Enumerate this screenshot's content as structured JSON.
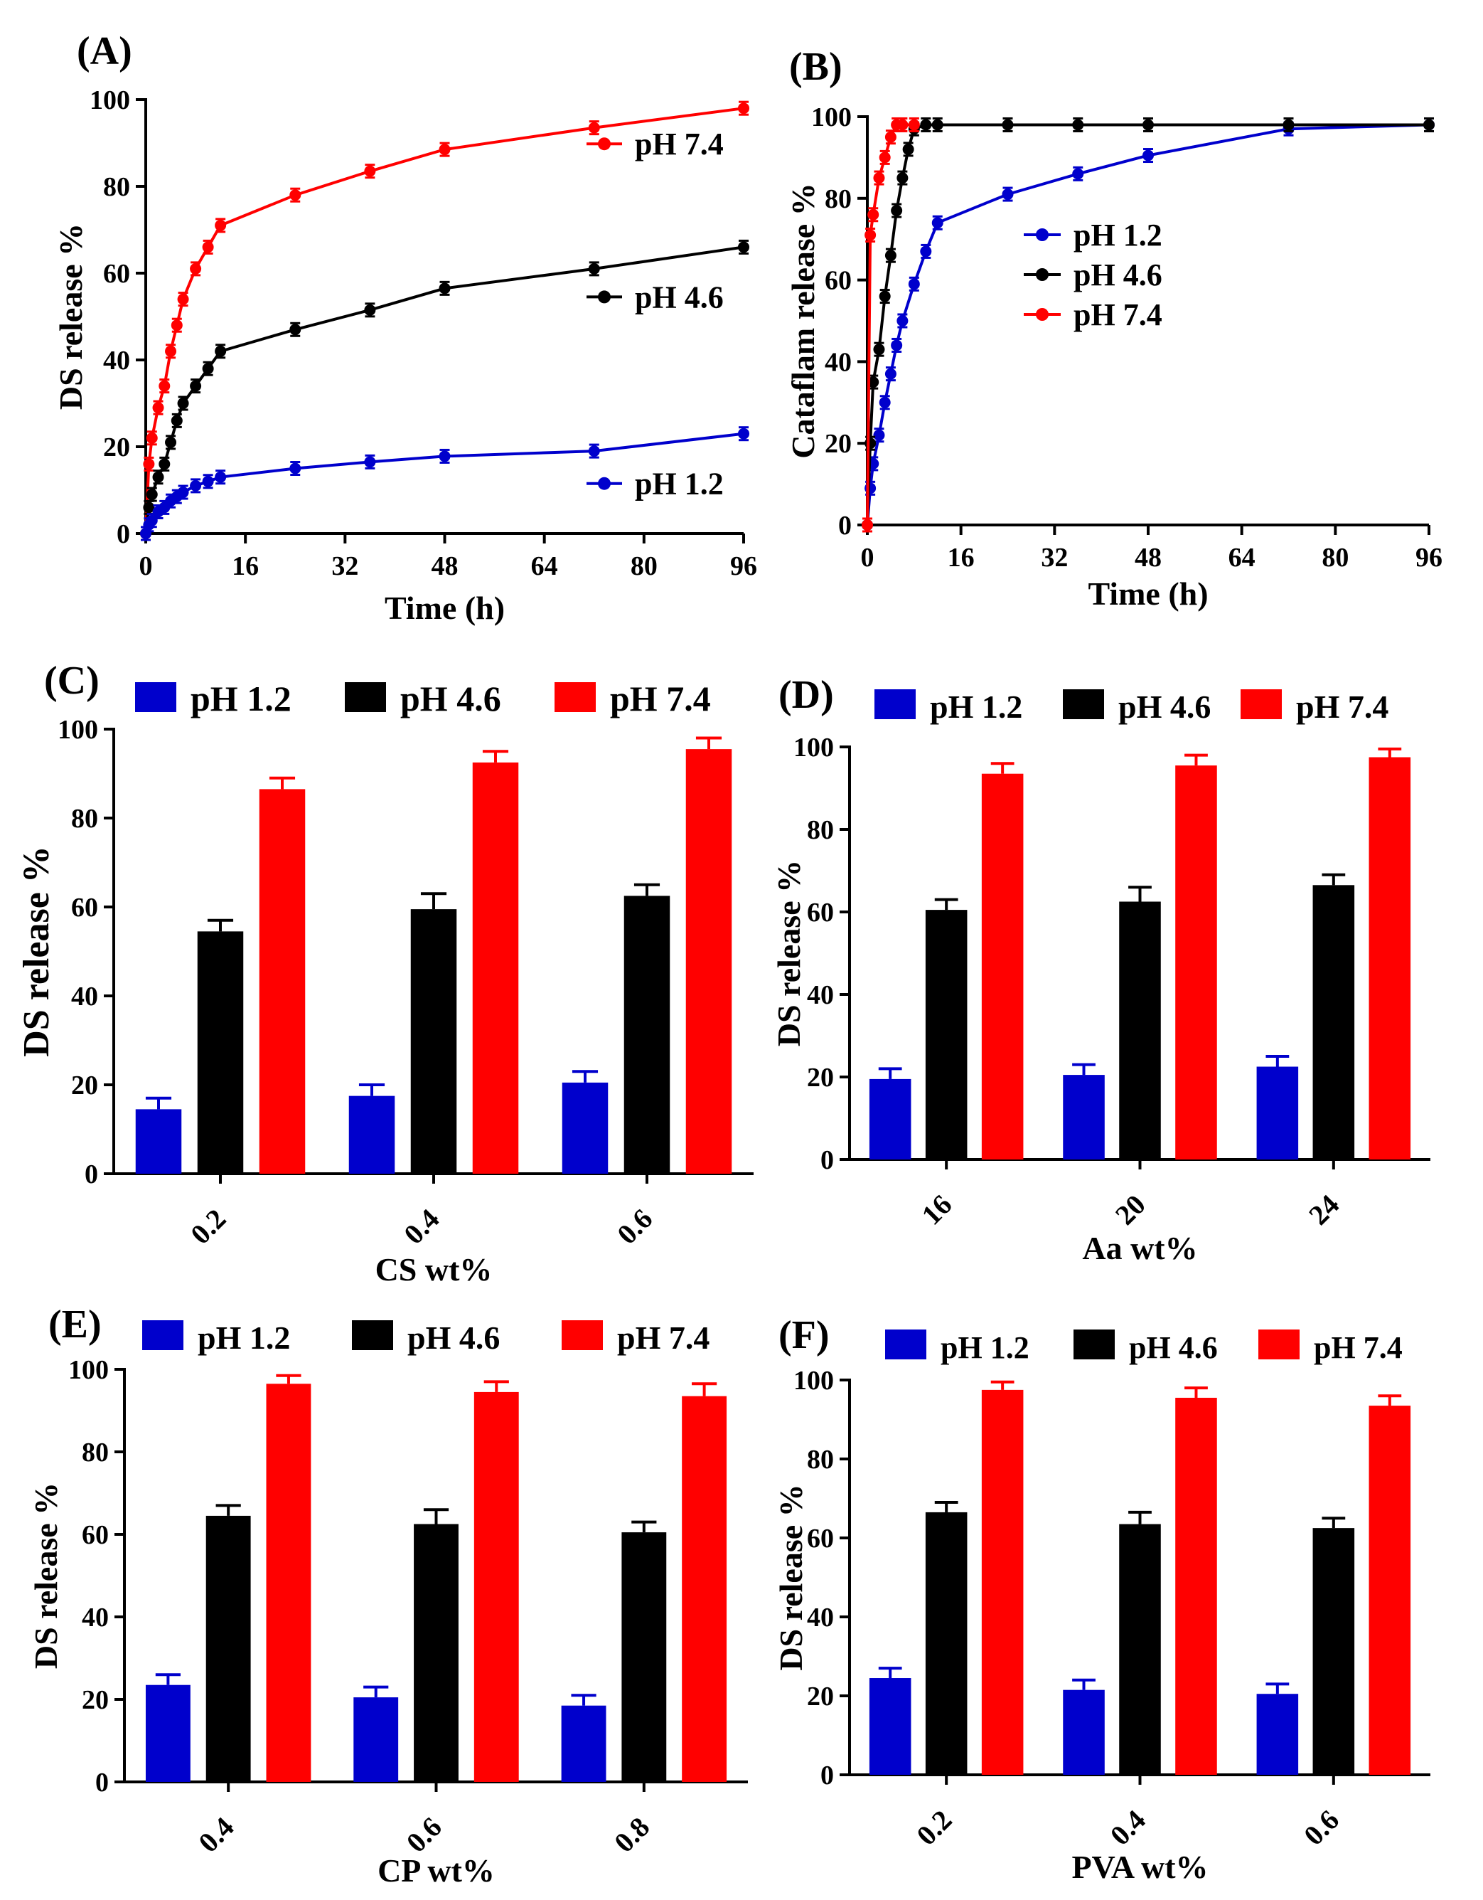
{
  "colors": {
    "ph12": "#0000cc",
    "ph46": "#000000",
    "ph74": "#ff0000"
  },
  "chart_data": [
    {
      "id": "A",
      "type": "line",
      "panel_label": "(A)",
      "xlabel": "Time (h)",
      "ylabel": "DS release %",
      "xlim": [
        0,
        96
      ],
      "ylim": [
        0,
        100
      ],
      "xticks": [
        "0",
        "16",
        "32",
        "48",
        "64",
        "80",
        "96"
      ],
      "yticks": [
        "0",
        "20",
        "40",
        "60",
        "80",
        "100"
      ],
      "legend_placement": "inline-right",
      "series": [
        {
          "name": "pH 7.4",
          "color": "#ff0000",
          "x": [
            0,
            0.5,
            1,
            2,
            3,
            4,
            5,
            6,
            8,
            10,
            12,
            24,
            36,
            48,
            72,
            96
          ],
          "y": [
            0,
            16,
            22,
            29,
            34,
            42,
            48,
            54,
            61,
            66,
            71,
            78,
            83.5,
            88.5,
            93.5,
            98
          ]
        },
        {
          "name": "pH 4.6",
          "color": "#000000",
          "x": [
            0,
            0.5,
            1,
            2,
            3,
            4,
            5,
            6,
            8,
            10,
            12,
            24,
            36,
            48,
            72,
            96
          ],
          "y": [
            0,
            6,
            9,
            13,
            16,
            21,
            26,
            30,
            34,
            38,
            42,
            47,
            51.5,
            56.5,
            61,
            66
          ]
        },
        {
          "name": "pH 1.2",
          "color": "#0000cc",
          "x": [
            0,
            0.5,
            1,
            2,
            3,
            4,
            5,
            6,
            8,
            10,
            12,
            24,
            36,
            48,
            72,
            96
          ],
          "y": [
            0,
            2,
            3,
            5,
            6,
            7.5,
            8.5,
            9.5,
            11,
            12,
            13,
            15,
            16.5,
            17.8,
            19,
            23
          ]
        }
      ]
    },
    {
      "id": "B",
      "type": "line",
      "panel_label": "(B)",
      "xlabel": "Time (h)",
      "ylabel": "Cataflam release %",
      "xlim": [
        0,
        96
      ],
      "ylim": [
        0,
        100
      ],
      "xticks": [
        "0",
        "16",
        "32",
        "48",
        "64",
        "80",
        "96"
      ],
      "yticks": [
        "0",
        "20",
        "40",
        "60",
        "80",
        "100"
      ],
      "legend_placement": "center-left",
      "series": [
        {
          "name": "pH 1.2",
          "color": "#0000cc",
          "x": [
            0,
            0.5,
            1,
            2,
            3,
            4,
            5,
            6,
            8,
            10,
            12,
            24,
            36,
            48,
            72,
            96
          ],
          "y": [
            0,
            9,
            15,
            22,
            30,
            37,
            44,
            50,
            59,
            67,
            74,
            81,
            86,
            90.5,
            97,
            98
          ]
        },
        {
          "name": "pH 4.6",
          "color": "#000000",
          "x": [
            0,
            0.5,
            1,
            2,
            3,
            4,
            5,
            6,
            7,
            8,
            10,
            12,
            24,
            36,
            48,
            72,
            96
          ],
          "y": [
            0,
            20,
            35,
            43,
            56,
            66,
            77,
            85,
            92,
            97,
            98,
            98,
            98,
            98,
            98,
            98,
            98
          ]
        },
        {
          "name": "pH 7.4",
          "color": "#ff0000",
          "x": [
            0,
            0.5,
            1,
            2,
            3,
            4,
            5,
            6,
            8
          ],
          "y": [
            0,
            71,
            76,
            85,
            90,
            95,
            98,
            98,
            98
          ]
        }
      ]
    },
    {
      "id": "C",
      "type": "bar",
      "panel_label": "(C)",
      "xlabel": "CS wt%",
      "ylabel": "DS release %",
      "ylim": [
        0,
        100
      ],
      "yticks": [
        "0",
        "20",
        "40",
        "60",
        "80",
        "100"
      ],
      "categories": [
        "0.2",
        "0.4",
        "0.6"
      ],
      "legend_placement": "top",
      "series": [
        {
          "name": "pH 1.2",
          "color": "#0000cc",
          "values": [
            14.5,
            17.5,
            20.5
          ],
          "errors": [
            2.5,
            2.5,
            2.5
          ]
        },
        {
          "name": "pH 4.6",
          "color": "#000000",
          "values": [
            54.5,
            59.5,
            62.5
          ],
          "errors": [
            2.5,
            3.5,
            2.5
          ]
        },
        {
          "name": "pH 7.4",
          "color": "#ff0000",
          "values": [
            86.5,
            92.5,
            95.5
          ],
          "errors": [
            2.5,
            2.5,
            2.5
          ]
        }
      ]
    },
    {
      "id": "D",
      "type": "bar",
      "panel_label": "(D)",
      "xlabel": "Aa wt%",
      "ylabel": "DS release %",
      "ylim": [
        0,
        100
      ],
      "yticks": [
        "0",
        "20",
        "40",
        "60",
        "80",
        "100"
      ],
      "categories": [
        "16",
        "20",
        "24"
      ],
      "legend_placement": "top",
      "series": [
        {
          "name": "pH 1.2",
          "color": "#0000cc",
          "values": [
            19.5,
            20.5,
            22.5
          ],
          "errors": [
            2.5,
            2.5,
            2.5
          ]
        },
        {
          "name": "pH 4.6",
          "color": "#000000",
          "values": [
            60.5,
            62.5,
            66.5
          ],
          "errors": [
            2.5,
            3.5,
            2.5
          ]
        },
        {
          "name": "pH 7.4",
          "color": "#ff0000",
          "values": [
            93.5,
            95.5,
            97.5
          ],
          "errors": [
            2.5,
            2.5,
            2
          ]
        }
      ]
    },
    {
      "id": "E",
      "type": "bar",
      "panel_label": "(E)",
      "xlabel": "CP wt%",
      "ylabel": "DS release %",
      "ylim": [
        0,
        100
      ],
      "yticks": [
        "0",
        "20",
        "40",
        "60",
        "80",
        "100"
      ],
      "categories": [
        "0.4",
        "0.6",
        "0.8"
      ],
      "legend_placement": "top",
      "series": [
        {
          "name": "pH 1.2",
          "color": "#0000cc",
          "values": [
            23.5,
            20.5,
            18.5
          ],
          "errors": [
            2.5,
            2.5,
            2.5
          ]
        },
        {
          "name": "pH 4.6",
          "color": "#000000",
          "values": [
            64.5,
            62.5,
            60.5
          ],
          "errors": [
            2.5,
            3.5,
            2.5
          ]
        },
        {
          "name": "pH 7.4",
          "color": "#ff0000",
          "values": [
            96.5,
            94.5,
            93.5
          ],
          "errors": [
            2,
            2.5,
            3
          ]
        }
      ]
    },
    {
      "id": "F",
      "type": "bar",
      "panel_label": "(F)",
      "xlabel": "PVA wt%",
      "ylabel": "DS release %",
      "ylim": [
        0,
        100
      ],
      "yticks": [
        "0",
        "20",
        "40",
        "60",
        "80",
        "100"
      ],
      "categories": [
        "0.2",
        "0.4",
        "0.6"
      ],
      "legend_placement": "top",
      "series": [
        {
          "name": "pH 1.2",
          "color": "#0000cc",
          "values": [
            24.5,
            21.5,
            20.5
          ],
          "errors": [
            2.5,
            2.5,
            2.5
          ]
        },
        {
          "name": "pH 4.6",
          "color": "#000000",
          "values": [
            66.5,
            63.5,
            62.5
          ],
          "errors": [
            2.5,
            3,
            2.5
          ]
        },
        {
          "name": "pH 7.4",
          "color": "#ff0000",
          "values": [
            97.5,
            95.5,
            93.5
          ],
          "errors": [
            2,
            2.5,
            2.5
          ]
        }
      ]
    }
  ]
}
